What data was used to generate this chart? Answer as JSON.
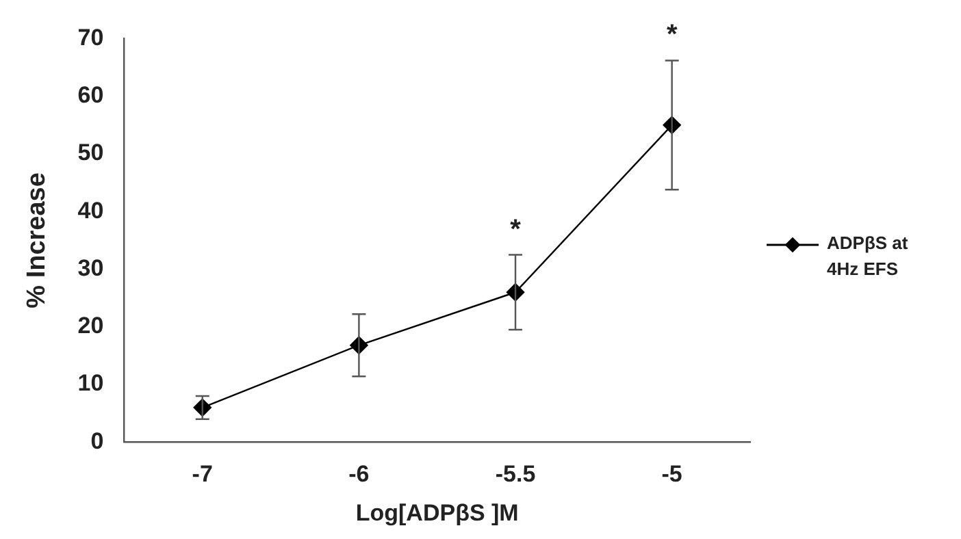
{
  "chart_data": {
    "type": "line",
    "xlabel": "Log[ADPβS ]M",
    "ylabel": "% Increase",
    "categories": [
      "-7",
      "-6",
      "-5.5",
      "-5"
    ],
    "series": [
      {
        "name": "ADPβS at 4Hz EFS",
        "color": "#000000",
        "values": [
          6,
          16.8,
          26,
          55
        ],
        "errors": [
          2,
          5.4,
          6.5,
          11.2
        ],
        "value_labels": [
          null,
          null,
          "*",
          "*"
        ]
      }
    ],
    "ylim": [
      0,
      70
    ],
    "yticks": [
      0,
      10,
      20,
      30,
      40,
      50,
      60,
      70
    ],
    "grid": false,
    "legend": "right",
    "marker": "diamond",
    "line_style": "solid"
  }
}
